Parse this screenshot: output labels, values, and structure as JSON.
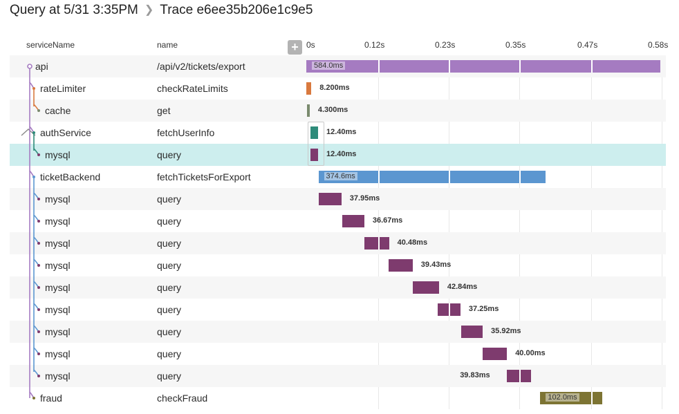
{
  "header": {
    "query": "Query at 5/31 3:35PM",
    "trace": "Trace e6ee35b206e1c9e5"
  },
  "columns": {
    "service": "serviceName",
    "name": "name"
  },
  "axis_ticks": [
    "0s",
    "0.12s",
    "0.23s",
    "0.35s",
    "0.47s",
    "0.58s"
  ],
  "colors": {
    "api": "#a57bc1",
    "rateLimiter": "#d9793e",
    "cache": "#7a8a6e",
    "authService": "#2e8b7a",
    "mysql": "#7e3b6e",
    "ticketBackend": "#5b96d0",
    "fraud": "#7d7433",
    "selected_row": "#cdeeee"
  },
  "rows": [
    {
      "service": "api",
      "name": "/api/v2/tickets/export",
      "duration": "584.0ms",
      "start_ms": 0,
      "dur_ms": 584.0,
      "color": "#a57bc1"
    },
    {
      "service": "rateLimiter",
      "name": "checkRateLimits",
      "duration": "8.200ms",
      "start_ms": 0,
      "dur_ms": 8.2,
      "color": "#d9793e"
    },
    {
      "service": "cache",
      "name": "get",
      "duration": "4.300ms",
      "start_ms": 1,
      "dur_ms": 4.3,
      "color": "#7a8a6e"
    },
    {
      "service": "authService",
      "name": "fetchUserInfo",
      "duration": "12.40ms",
      "start_ms": 7,
      "dur_ms": 12.4,
      "color": "#2e8b7a"
    },
    {
      "service": "mysql",
      "name": "query",
      "duration": "12.40ms",
      "start_ms": 7,
      "dur_ms": 12.4,
      "color": "#7e3b6e"
    },
    {
      "service": "ticketBackend",
      "name": "fetchTicketsForExport",
      "duration": "374.6ms",
      "start_ms": 20,
      "dur_ms": 374.6,
      "color": "#5b96d0"
    },
    {
      "service": "mysql",
      "name": "query",
      "duration": "37.95ms",
      "start_ms": 20,
      "dur_ms": 37.95,
      "color": "#7e3b6e"
    },
    {
      "service": "mysql",
      "name": "query",
      "duration": "36.67ms",
      "start_ms": 59,
      "dur_ms": 36.67,
      "color": "#7e3b6e"
    },
    {
      "service": "mysql",
      "name": "query",
      "duration": "40.48ms",
      "start_ms": 96,
      "dur_ms": 40.48,
      "color": "#7e3b6e"
    },
    {
      "service": "mysql",
      "name": "query",
      "duration": "39.43ms",
      "start_ms": 136,
      "dur_ms": 39.43,
      "color": "#7e3b6e"
    },
    {
      "service": "mysql",
      "name": "query",
      "duration": "42.84ms",
      "start_ms": 176,
      "dur_ms": 42.84,
      "color": "#7e3b6e"
    },
    {
      "service": "mysql",
      "name": "query",
      "duration": "37.25ms",
      "start_ms": 217,
      "dur_ms": 37.25,
      "color": "#7e3b6e"
    },
    {
      "service": "mysql",
      "name": "query",
      "duration": "35.92ms",
      "start_ms": 255,
      "dur_ms": 35.92,
      "color": "#7e3b6e"
    },
    {
      "service": "mysql",
      "name": "query",
      "duration": "40.00ms",
      "start_ms": 291,
      "dur_ms": 40.0,
      "color": "#7e3b6e"
    },
    {
      "service": "mysql",
      "name": "query",
      "duration": "39.83ms",
      "start_ms": 331,
      "dur_ms": 39.83,
      "color": "#7e3b6e"
    },
    {
      "service": "fraud",
      "name": "checkFraud",
      "duration": "102.0ms",
      "start_ms": 386,
      "dur_ms": 102.0,
      "color": "#7d7433"
    }
  ]
}
